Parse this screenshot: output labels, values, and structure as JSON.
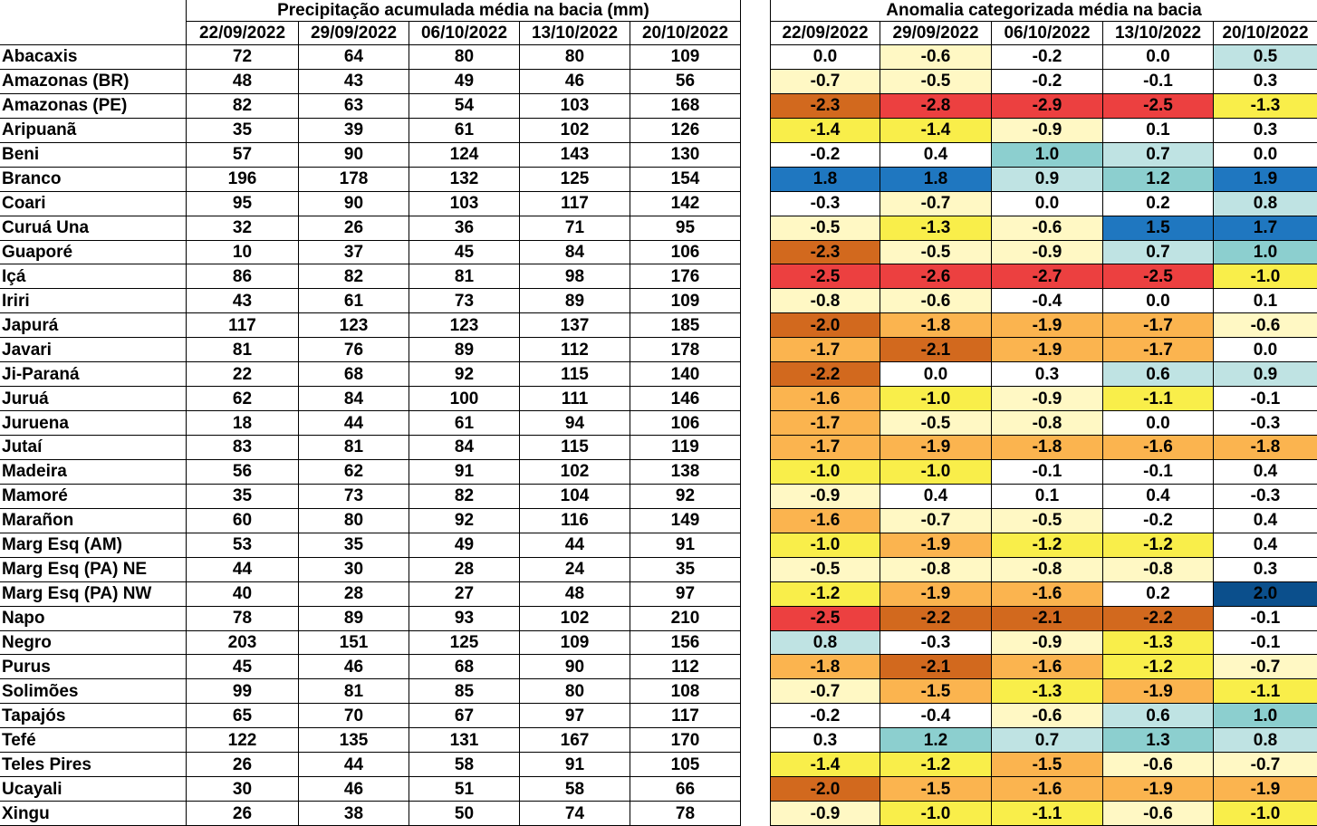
{
  "precipitation_table": {
    "title": "Precipitação acumulada média na bacia (mm)",
    "dates": [
      "22/09/2022",
      "29/09/2022",
      "06/10/2022",
      "13/10/2022",
      "20/10/2022"
    ],
    "rows": [
      {
        "name": "Abacaxis",
        "values": [
          72,
          64,
          80,
          80,
          109
        ]
      },
      {
        "name": "Amazonas (BR)",
        "values": [
          48,
          43,
          49,
          46,
          56
        ]
      },
      {
        "name": "Amazonas (PE)",
        "values": [
          82,
          63,
          54,
          103,
          168
        ]
      },
      {
        "name": "Aripuanã",
        "values": [
          35,
          39,
          61,
          102,
          126
        ]
      },
      {
        "name": "Beni",
        "values": [
          57,
          90,
          124,
          143,
          130
        ]
      },
      {
        "name": "Branco",
        "values": [
          196,
          178,
          132,
          125,
          154
        ]
      },
      {
        "name": "Coari",
        "values": [
          95,
          90,
          103,
          117,
          142
        ]
      },
      {
        "name": "Curuá Una",
        "values": [
          32,
          26,
          36,
          71,
          95
        ]
      },
      {
        "name": "Guaporé",
        "values": [
          10,
          37,
          45,
          84,
          106
        ]
      },
      {
        "name": "Içá",
        "values": [
          86,
          82,
          81,
          98,
          176
        ]
      },
      {
        "name": "Iriri",
        "values": [
          43,
          61,
          73,
          89,
          109
        ]
      },
      {
        "name": "Japurá",
        "values": [
          117,
          123,
          123,
          137,
          185
        ]
      },
      {
        "name": "Javari",
        "values": [
          81,
          76,
          89,
          112,
          178
        ]
      },
      {
        "name": "Ji-Paraná",
        "values": [
          22,
          68,
          92,
          115,
          140
        ]
      },
      {
        "name": "Juruá",
        "values": [
          62,
          84,
          100,
          111,
          146
        ]
      },
      {
        "name": "Juruena",
        "values": [
          18,
          44,
          61,
          94,
          106
        ]
      },
      {
        "name": "Jutaí",
        "values": [
          83,
          81,
          84,
          115,
          119
        ]
      },
      {
        "name": "Madeira",
        "values": [
          56,
          62,
          91,
          102,
          138
        ]
      },
      {
        "name": "Mamoré",
        "values": [
          35,
          73,
          82,
          104,
          92
        ]
      },
      {
        "name": "Marañon",
        "values": [
          60,
          80,
          92,
          116,
          149
        ]
      },
      {
        "name": "Marg Esq (AM)",
        "values": [
          53,
          35,
          49,
          44,
          91
        ]
      },
      {
        "name": "Marg Esq (PA) NE",
        "values": [
          44,
          30,
          28,
          24,
          35
        ]
      },
      {
        "name": "Marg Esq (PA) NW",
        "values": [
          40,
          28,
          27,
          48,
          97
        ]
      },
      {
        "name": "Napo",
        "values": [
          78,
          89,
          93,
          102,
          210
        ]
      },
      {
        "name": "Negro",
        "values": [
          203,
          151,
          125,
          109,
          156
        ]
      },
      {
        "name": "Purus",
        "values": [
          45,
          46,
          68,
          90,
          112
        ]
      },
      {
        "name": "Solimões",
        "values": [
          99,
          81,
          85,
          80,
          108
        ]
      },
      {
        "name": "Tapajós",
        "values": [
          65,
          70,
          67,
          97,
          117
        ]
      },
      {
        "name": "Tefé",
        "values": [
          122,
          135,
          131,
          167,
          170
        ]
      },
      {
        "name": "Teles Pires",
        "values": [
          26,
          44,
          58,
          91,
          105
        ]
      },
      {
        "name": "Ucayali",
        "values": [
          30,
          46,
          51,
          58,
          66
        ]
      },
      {
        "name": "Xingu",
        "values": [
          26,
          38,
          50,
          74,
          78
        ]
      }
    ]
  },
  "anomaly_table": {
    "title": "Anomalia categorizada média na bacia",
    "dates": [
      "22/09/2022",
      "29/09/2022",
      "06/10/2022",
      "13/10/2022",
      "20/10/2022"
    ],
    "rows": [
      {
        "values": [
          "0.0",
          "-0.6",
          "-0.2",
          "0.0",
          "0.5"
        ],
        "fills": [
          "#ffffff",
          "#fff8c4",
          "#ffffff",
          "#ffffff",
          "#bfe3e3"
        ]
      },
      {
        "values": [
          "-0.7",
          "-0.5",
          "-0.2",
          "-0.1",
          "0.3"
        ],
        "fills": [
          "#fff8c4",
          "#fff8c4",
          "#ffffff",
          "#ffffff",
          "#ffffff"
        ]
      },
      {
        "values": [
          "-2.3",
          "-2.8",
          "-2.9",
          "-2.5",
          "-1.3"
        ],
        "fills": [
          "#d2691e",
          "#ec4040",
          "#ec4040",
          "#ec4040",
          "#f9ee4a"
        ]
      },
      {
        "values": [
          "-1.4",
          "-1.4",
          "-0.9",
          "0.1",
          "0.3"
        ],
        "fills": [
          "#f9ee4a",
          "#f9ee4a",
          "#fff8c4",
          "#ffffff",
          "#ffffff"
        ]
      },
      {
        "values": [
          "-0.2",
          "0.4",
          "1.0",
          "0.7",
          "0.0"
        ],
        "fills": [
          "#ffffff",
          "#ffffff",
          "#8ccfcf",
          "#bfe3e3",
          "#ffffff"
        ]
      },
      {
        "values": [
          "1.8",
          "1.8",
          "0.9",
          "1.2",
          "1.9"
        ],
        "fills": [
          "#1f77c0",
          "#1f77c0",
          "#bfe3e3",
          "#8ccfcf",
          "#1f77c0"
        ]
      },
      {
        "values": [
          "-0.3",
          "-0.7",
          "0.0",
          "0.2",
          "0.8"
        ],
        "fills": [
          "#ffffff",
          "#fff8c4",
          "#ffffff",
          "#ffffff",
          "#bfe3e3"
        ]
      },
      {
        "values": [
          "-0.5",
          "-1.3",
          "-0.6",
          "1.5",
          "1.7"
        ],
        "fills": [
          "#fff8c4",
          "#f9ee4a",
          "#fff8c4",
          "#1f77c0",
          "#1f77c0"
        ]
      },
      {
        "values": [
          "-2.3",
          "-0.5",
          "-0.9",
          "0.7",
          "1.0"
        ],
        "fills": [
          "#d2691e",
          "#fff8c4",
          "#fff8c4",
          "#bfe3e3",
          "#8ccfcf"
        ]
      },
      {
        "values": [
          "-2.5",
          "-2.6",
          "-2.7",
          "-2.5",
          "-1.0"
        ],
        "fills": [
          "#ec4040",
          "#ec4040",
          "#ec4040",
          "#ec4040",
          "#f9ee4a"
        ]
      },
      {
        "values": [
          "-0.8",
          "-0.6",
          "-0.4",
          "0.0",
          "0.1"
        ],
        "fills": [
          "#fff8c4",
          "#fff8c4",
          "#ffffff",
          "#ffffff",
          "#ffffff"
        ]
      },
      {
        "values": [
          "-2.0",
          "-1.8",
          "-1.9",
          "-1.7",
          "-0.6"
        ],
        "fills": [
          "#d2691e",
          "#fbb44f",
          "#fbb44f",
          "#fbb44f",
          "#fff8c4"
        ]
      },
      {
        "values": [
          "-1.7",
          "-2.1",
          "-1.9",
          "-1.7",
          "0.0"
        ],
        "fills": [
          "#fbb44f",
          "#d2691e",
          "#fbb44f",
          "#fbb44f",
          "#ffffff"
        ]
      },
      {
        "values": [
          "-2.2",
          "0.0",
          "0.3",
          "0.6",
          "0.9"
        ],
        "fills": [
          "#d2691e",
          "#ffffff",
          "#ffffff",
          "#bfe3e3",
          "#bfe3e3"
        ]
      },
      {
        "values": [
          "-1.6",
          "-1.0",
          "-0.9",
          "-1.1",
          "-0.1"
        ],
        "fills": [
          "#fbb44f",
          "#f9ee4a",
          "#fff8c4",
          "#f9ee4a",
          "#ffffff"
        ]
      },
      {
        "values": [
          "-1.7",
          "-0.5",
          "-0.8",
          "0.0",
          "-0.3"
        ],
        "fills": [
          "#fbb44f",
          "#fff8c4",
          "#fff8c4",
          "#ffffff",
          "#ffffff"
        ]
      },
      {
        "values": [
          "-1.7",
          "-1.9",
          "-1.8",
          "-1.6",
          "-1.8"
        ],
        "fills": [
          "#fbb44f",
          "#fbb44f",
          "#fbb44f",
          "#fbb44f",
          "#fbb44f"
        ]
      },
      {
        "values": [
          "-1.0",
          "-1.0",
          "-0.1",
          "-0.1",
          "0.4"
        ],
        "fills": [
          "#f9ee4a",
          "#f9ee4a",
          "#ffffff",
          "#ffffff",
          "#ffffff"
        ]
      },
      {
        "values": [
          "-0.9",
          "0.4",
          "0.1",
          "0.4",
          "-0.3"
        ],
        "fills": [
          "#fff8c4",
          "#ffffff",
          "#ffffff",
          "#ffffff",
          "#ffffff"
        ]
      },
      {
        "values": [
          "-1.6",
          "-0.7",
          "-0.5",
          "-0.2",
          "0.4"
        ],
        "fills": [
          "#fbb44f",
          "#fff8c4",
          "#fff8c4",
          "#ffffff",
          "#ffffff"
        ]
      },
      {
        "values": [
          "-1.0",
          "-1.9",
          "-1.2",
          "-1.2",
          "0.4"
        ],
        "fills": [
          "#f9ee4a",
          "#fbb44f",
          "#f9ee4a",
          "#f9ee4a",
          "#ffffff"
        ]
      },
      {
        "values": [
          "-0.5",
          "-0.8",
          "-0.8",
          "-0.8",
          "0.3"
        ],
        "fills": [
          "#fff8c4",
          "#fff8c4",
          "#fff8c4",
          "#fff8c4",
          "#ffffff"
        ]
      },
      {
        "values": [
          "-1.2",
          "-1.9",
          "-1.6",
          "0.2",
          "2.0"
        ],
        "fills": [
          "#f9ee4a",
          "#fbb44f",
          "#fbb44f",
          "#ffffff",
          "#0b4f8c"
        ]
      },
      {
        "values": [
          "-2.5",
          "-2.2",
          "-2.1",
          "-2.2",
          "-0.1"
        ],
        "fills": [
          "#ec4040",
          "#d2691e",
          "#d2691e",
          "#d2691e",
          "#ffffff"
        ]
      },
      {
        "values": [
          "0.8",
          "-0.3",
          "-0.9",
          "-1.3",
          "-0.1"
        ],
        "fills": [
          "#bfe3e3",
          "#ffffff",
          "#fff8c4",
          "#f9ee4a",
          "#ffffff"
        ]
      },
      {
        "values": [
          "-1.8",
          "-2.1",
          "-1.6",
          "-1.2",
          "-0.7"
        ],
        "fills": [
          "#fbb44f",
          "#d2691e",
          "#fbb44f",
          "#f9ee4a",
          "#fff8c4"
        ]
      },
      {
        "values": [
          "-0.7",
          "-1.5",
          "-1.3",
          "-1.9",
          "-1.1"
        ],
        "fills": [
          "#fff8c4",
          "#fbb44f",
          "#f9ee4a",
          "#fbb44f",
          "#f9ee4a"
        ]
      },
      {
        "values": [
          "-0.2",
          "-0.4",
          "-0.6",
          "0.6",
          "1.0"
        ],
        "fills": [
          "#ffffff",
          "#ffffff",
          "#fff8c4",
          "#bfe3e3",
          "#8ccfcf"
        ]
      },
      {
        "values": [
          "0.3",
          "1.2",
          "0.7",
          "1.3",
          "0.8"
        ],
        "fills": [
          "#ffffff",
          "#8ccfcf",
          "#bfe3e3",
          "#8ccfcf",
          "#bfe3e3"
        ]
      },
      {
        "values": [
          "-1.4",
          "-1.2",
          "-1.5",
          "-0.6",
          "-0.7"
        ],
        "fills": [
          "#f9ee4a",
          "#f9ee4a",
          "#fbb44f",
          "#fff8c4",
          "#fff8c4"
        ]
      },
      {
        "values": [
          "-2.0",
          "-1.5",
          "-1.6",
          "-1.9",
          "-1.9"
        ],
        "fills": [
          "#d2691e",
          "#fbb44f",
          "#fbb44f",
          "#fbb44f",
          "#fbb44f"
        ]
      },
      {
        "values": [
          "-0.9",
          "-1.0",
          "-1.1",
          "-0.6",
          "-1.0"
        ],
        "fills": [
          "#fff8c4",
          "#f9ee4a",
          "#f9ee4a",
          "#fff8c4",
          "#f9ee4a"
        ]
      }
    ]
  }
}
